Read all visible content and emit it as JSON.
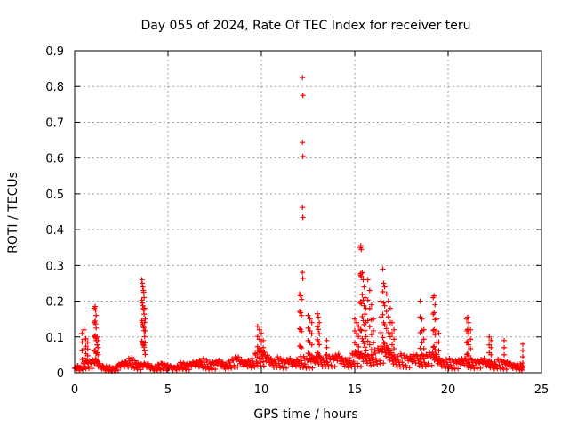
{
  "chart_data": {
    "type": "scatter",
    "title": "Day 055 of 2024, Rate Of TEC Index for receiver teru",
    "xlabel": "GPS time / hours",
    "ylabel": "ROTI / TECUs",
    "xlim": [
      0,
      25
    ],
    "ylim": [
      0,
      0.9
    ],
    "x_ticks": [
      0,
      5,
      10,
      15,
      20,
      25
    ],
    "y_ticks": [
      0,
      0.1,
      0.2,
      0.3,
      0.4,
      0.5,
      0.6,
      0.7,
      0.8,
      0.9
    ],
    "x_tick_labels": [
      "0",
      "5",
      "10",
      "15",
      "20",
      "25"
    ],
    "y_tick_labels": [
      "0",
      "0.1",
      "0.2",
      "0.3",
      "0.4",
      "0.5",
      "0.6",
      "0.7",
      "0.8",
      "0.9"
    ],
    "grid": true,
    "marker": "+",
    "marker_color": "#ff0000",
    "series": [
      {
        "baseline": [
          [
            0.0,
            0.012
          ],
          [
            0.15,
            0.02
          ],
          [
            0.3,
            0.015
          ],
          [
            0.5,
            0.025
          ],
          [
            0.7,
            0.03
          ],
          [
            0.9,
            0.028
          ],
          [
            1.1,
            0.035
          ],
          [
            1.3,
            0.025
          ],
          [
            1.5,
            0.02
          ],
          [
            1.7,
            0.018
          ],
          [
            1.9,
            0.015
          ],
          [
            2.1,
            0.012
          ],
          [
            2.3,
            0.02
          ],
          [
            2.5,
            0.025
          ],
          [
            2.7,
            0.03
          ],
          [
            2.9,
            0.04
          ],
          [
            3.1,
            0.035
          ],
          [
            3.3,
            0.025
          ],
          [
            3.5,
            0.02
          ],
          [
            3.7,
            0.022
          ],
          [
            3.9,
            0.025
          ],
          [
            4.1,
            0.02
          ],
          [
            4.3,
            0.018
          ],
          [
            4.5,
            0.022
          ],
          [
            4.7,
            0.025
          ],
          [
            4.9,
            0.02
          ],
          [
            5.1,
            0.018
          ],
          [
            5.3,
            0.015
          ],
          [
            5.5,
            0.02
          ],
          [
            5.7,
            0.025
          ],
          [
            5.9,
            0.022
          ],
          [
            6.1,
            0.02
          ],
          [
            6.3,
            0.025
          ],
          [
            6.5,
            0.03
          ],
          [
            6.7,
            0.035
          ],
          [
            6.9,
            0.04
          ],
          [
            7.1,
            0.03
          ],
          [
            7.3,
            0.025
          ],
          [
            7.5,
            0.028
          ],
          [
            7.7,
            0.032
          ],
          [
            7.9,
            0.03
          ],
          [
            8.1,
            0.025
          ],
          [
            8.3,
            0.028
          ],
          [
            8.5,
            0.035
          ],
          [
            8.7,
            0.04
          ],
          [
            8.9,
            0.032
          ],
          [
            9.1,
            0.03
          ],
          [
            9.3,
            0.035
          ],
          [
            9.5,
            0.04
          ],
          [
            9.7,
            0.05
          ],
          [
            9.9,
            0.06
          ],
          [
            10.1,
            0.055
          ],
          [
            10.3,
            0.045
          ],
          [
            10.5,
            0.04
          ],
          [
            10.7,
            0.035
          ],
          [
            10.9,
            0.038
          ],
          [
            11.1,
            0.032
          ],
          [
            11.3,
            0.03
          ],
          [
            11.5,
            0.035
          ],
          [
            11.7,
            0.03
          ],
          [
            11.9,
            0.038
          ],
          [
            12.1,
            0.045
          ],
          [
            12.3,
            0.04
          ],
          [
            12.5,
            0.035
          ],
          [
            12.7,
            0.038
          ],
          [
            12.9,
            0.04
          ],
          [
            13.1,
            0.045
          ],
          [
            13.3,
            0.04
          ],
          [
            13.5,
            0.042
          ],
          [
            13.7,
            0.038
          ],
          [
            13.9,
            0.04
          ],
          [
            14.1,
            0.045
          ],
          [
            14.3,
            0.04
          ],
          [
            14.5,
            0.038
          ],
          [
            14.7,
            0.042
          ],
          [
            14.9,
            0.05
          ],
          [
            15.1,
            0.055
          ],
          [
            15.3,
            0.05
          ],
          [
            15.5,
            0.045
          ],
          [
            15.7,
            0.048
          ],
          [
            15.9,
            0.05
          ],
          [
            16.1,
            0.055
          ],
          [
            16.3,
            0.06
          ],
          [
            16.5,
            0.065
          ],
          [
            16.7,
            0.06
          ],
          [
            16.9,
            0.055
          ],
          [
            17.1,
            0.05
          ],
          [
            17.3,
            0.045
          ],
          [
            17.5,
            0.048
          ],
          [
            17.7,
            0.042
          ],
          [
            17.9,
            0.04
          ],
          [
            18.1,
            0.045
          ],
          [
            18.3,
            0.05
          ],
          [
            18.5,
            0.045
          ],
          [
            18.7,
            0.04
          ],
          [
            18.9,
            0.045
          ],
          [
            19.1,
            0.05
          ],
          [
            19.3,
            0.045
          ],
          [
            19.5,
            0.04
          ],
          [
            19.7,
            0.035
          ],
          [
            19.9,
            0.038
          ],
          [
            20.1,
            0.035
          ],
          [
            20.3,
            0.03
          ],
          [
            20.5,
            0.032
          ],
          [
            20.7,
            0.035
          ],
          [
            20.9,
            0.04
          ],
          [
            21.1,
            0.035
          ],
          [
            21.3,
            0.03
          ],
          [
            21.5,
            0.028
          ],
          [
            21.7,
            0.03
          ],
          [
            21.9,
            0.035
          ],
          [
            22.1,
            0.03
          ],
          [
            22.3,
            0.028
          ],
          [
            22.5,
            0.03
          ],
          [
            22.7,
            0.035
          ],
          [
            22.9,
            0.03
          ],
          [
            23.1,
            0.028
          ],
          [
            23.3,
            0.025
          ],
          [
            23.5,
            0.022
          ],
          [
            23.7,
            0.025
          ],
          [
            23.9,
            0.02
          ],
          [
            24.0,
            0.015
          ]
        ],
        "spikes": [
          [
            0.4,
            0.11
          ],
          [
            0.5,
            0.12
          ],
          [
            0.6,
            0.095
          ],
          [
            0.7,
            0.085
          ],
          [
            1.05,
            0.18
          ],
          [
            1.1,
            0.185
          ],
          [
            1.12,
            0.175
          ],
          [
            1.15,
            0.16
          ],
          [
            1.2,
            0.1
          ],
          [
            1.25,
            0.09
          ],
          [
            3.6,
            0.26
          ],
          [
            3.62,
            0.25
          ],
          [
            3.65,
            0.24
          ],
          [
            3.68,
            0.23
          ],
          [
            3.7,
            0.225
          ],
          [
            3.72,
            0.21
          ],
          [
            3.75,
            0.18
          ],
          [
            3.78,
            0.15
          ],
          [
            9.8,
            0.13
          ],
          [
            9.9,
            0.12
          ],
          [
            10.0,
            0.11
          ],
          [
            10.1,
            0.09
          ],
          [
            12.05,
            0.22
          ],
          [
            12.1,
            0.215
          ],
          [
            12.15,
            0.205
          ],
          [
            12.2,
            0.825
          ],
          [
            12.22,
            0.775
          ],
          [
            12.5,
            0.16
          ],
          [
            12.6,
            0.15
          ],
          [
            12.7,
            0.14
          ],
          [
            13.0,
            0.165
          ],
          [
            13.05,
            0.155
          ],
          [
            13.1,
            0.14
          ],
          [
            13.5,
            0.09
          ],
          [
            15.0,
            0.15
          ],
          [
            15.1,
            0.14
          ],
          [
            15.2,
            0.13
          ],
          [
            15.3,
            0.35
          ],
          [
            15.32,
            0.355
          ],
          [
            15.35,
            0.345
          ],
          [
            15.4,
            0.28
          ],
          [
            15.45,
            0.26
          ],
          [
            15.5,
            0.24
          ],
          [
            15.55,
            0.21
          ],
          [
            15.6,
            0.18
          ],
          [
            15.7,
            0.26
          ],
          [
            15.8,
            0.23
          ],
          [
            15.9,
            0.19
          ],
          [
            16.0,
            0.15
          ],
          [
            16.4,
            0.2
          ],
          [
            16.5,
            0.29
          ],
          [
            16.55,
            0.25
          ],
          [
            16.6,
            0.24
          ],
          [
            16.7,
            0.22
          ],
          [
            16.8,
            0.2
          ],
          [
            16.9,
            0.18
          ],
          [
            17.0,
            0.14
          ],
          [
            17.1,
            0.12
          ],
          [
            18.5,
            0.2
          ],
          [
            18.6,
            0.15
          ],
          [
            18.7,
            0.12
          ],
          [
            19.2,
            0.21
          ],
          [
            19.25,
            0.215
          ],
          [
            19.3,
            0.19
          ],
          [
            19.4,
            0.15
          ],
          [
            19.5,
            0.11
          ],
          [
            21.0,
            0.15
          ],
          [
            21.05,
            0.155
          ],
          [
            21.1,
            0.14
          ],
          [
            21.2,
            0.12
          ],
          [
            22.2,
            0.1
          ],
          [
            22.3,
            0.09
          ],
          [
            23.0,
            0.09
          ],
          [
            24.0,
            0.08
          ]
        ]
      }
    ]
  }
}
